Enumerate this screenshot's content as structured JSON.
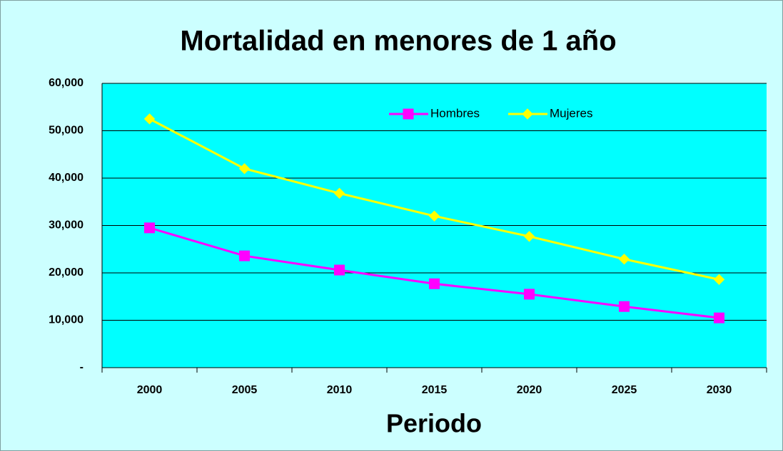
{
  "chart_data": {
    "type": "line",
    "title": "Mortalidad en menores de 1 año",
    "x_label": "Periodo",
    "categories": [
      "2000",
      "2005",
      "2010",
      "2015",
      "2020",
      "2025",
      "2030"
    ],
    "series": [
      {
        "name": "Hombres",
        "color": "#ff00ff",
        "marker": "square",
        "values": [
          29500,
          23600,
          20600,
          17700,
          15500,
          12900,
          10500
        ]
      },
      {
        "name": "Mujeres",
        "color": "#ffff00",
        "marker": "diamond",
        "values": [
          52500,
          42000,
          36800,
          32000,
          27700,
          22900,
          18600
        ]
      }
    ],
    "ylim": [
      0,
      60000
    ],
    "yticks": [
      {
        "value": 0,
        "label": "-"
      },
      {
        "value": 10000,
        "label": "10,000"
      },
      {
        "value": 20000,
        "label": "20,000"
      },
      {
        "value": 30000,
        "label": "30,000"
      },
      {
        "value": 40000,
        "label": "40,000"
      },
      {
        "value": 50000,
        "label": "50,000"
      },
      {
        "value": 60000,
        "label": "60,000"
      }
    ],
    "grid": true,
    "legend": "top"
  }
}
